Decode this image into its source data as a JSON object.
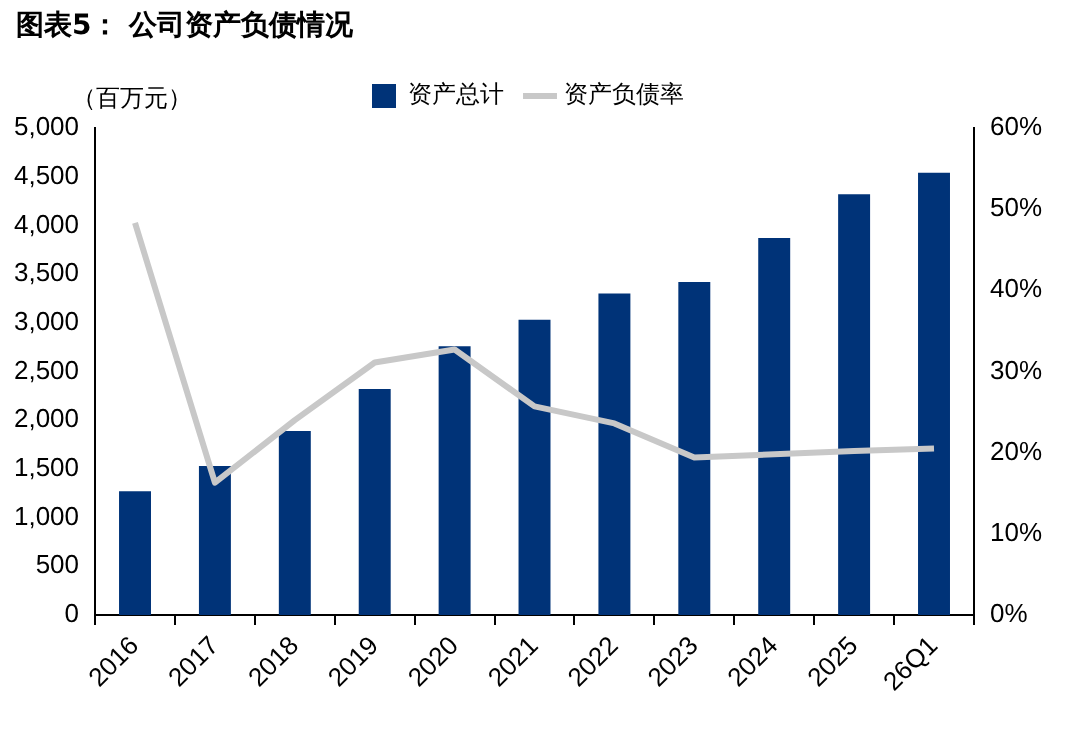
{
  "chart_data": {
    "type": "bar",
    "title": "图表5： 公司资产负债情况",
    "ylabel": "（百万元）",
    "categories": [
      "2016",
      "2017",
      "2018",
      "2019",
      "2020",
      "2021",
      "2022",
      "2023",
      "2024",
      "2025",
      "26Q1"
    ],
    "series": [
      {
        "name": "资产总计",
        "color": "#003378",
        "values": [
          1270,
          1530,
          1890,
          2320,
          2760,
          3030,
          3300,
          3420,
          3870,
          4320,
          4540
        ]
      },
      {
        "name": "资产负债率",
        "type": "line",
        "axis": "y2",
        "color": "#c8c8c8",
        "marker": "none",
        "values": [
          48.3,
          16.3,
          24.0,
          31.1,
          32.7,
          25.7,
          23.6,
          19.4,
          19.8,
          20.2,
          20.5
        ]
      }
    ],
    "ylim": [
      0,
      5000
    ],
    "yticks": [
      0,
      {
        "value": 500,
        "label": "500"
      },
      {
        "value": 1000,
        "label": "1,000"
      },
      {
        "value": 1500,
        "label": "1,500"
      },
      {
        "value": 2000,
        "label": "2,000"
      },
      {
        "value": 2500,
        "label": "2,500"
      },
      {
        "value": 3000,
        "label": "3,000"
      },
      {
        "value": 3500,
        "label": "3,500"
      },
      {
        "value": 4000,
        "label": "4,000"
      },
      {
        "value": 4500,
        "label": "4,500"
      },
      {
        "value": 5000,
        "label": "5,000"
      }
    ],
    "y2lim": [
      0,
      60
    ],
    "y2ticks": [
      {
        "value": 0,
        "label": "0%"
      },
      {
        "value": 10,
        "label": "10%"
      },
      {
        "value": 20,
        "label": "20%"
      },
      {
        "value": 30,
        "label": "30%"
      },
      {
        "value": 40,
        "label": "40%"
      },
      {
        "value": 50,
        "label": "50%"
      },
      {
        "value": 60,
        "label": "60%"
      }
    ],
    "grid": false,
    "legend": "top"
  }
}
